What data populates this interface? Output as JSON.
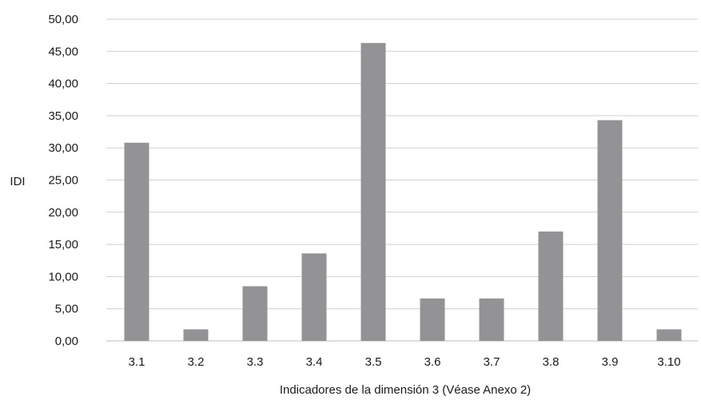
{
  "chart_data": {
    "type": "bar",
    "title": "",
    "xlabel": "Indicadores de la dimensión 3 (Véase Anexo 2)",
    "ylabel": "IDI",
    "categories": [
      "3.1",
      "3.2",
      "3.3",
      "3.4",
      "3.5",
      "3.6",
      "3.7",
      "3.8",
      "3.9",
      "3.10"
    ],
    "series": [
      {
        "values": [
          30.8,
          1.8,
          8.5,
          13.6,
          46.3,
          6.6,
          6.6,
          17.0,
          34.3,
          1.8
        ]
      }
    ],
    "ylim": [
      0,
      50
    ],
    "yticks": [
      "0,00",
      "5,00",
      "10,00",
      "15,00",
      "20,00",
      "25,00",
      "30,00",
      "35,00",
      "40,00",
      "45,00",
      "50,00"
    ],
    "grid": true,
    "legend": "none",
    "colors": {
      "bar": "#939396"
    }
  }
}
